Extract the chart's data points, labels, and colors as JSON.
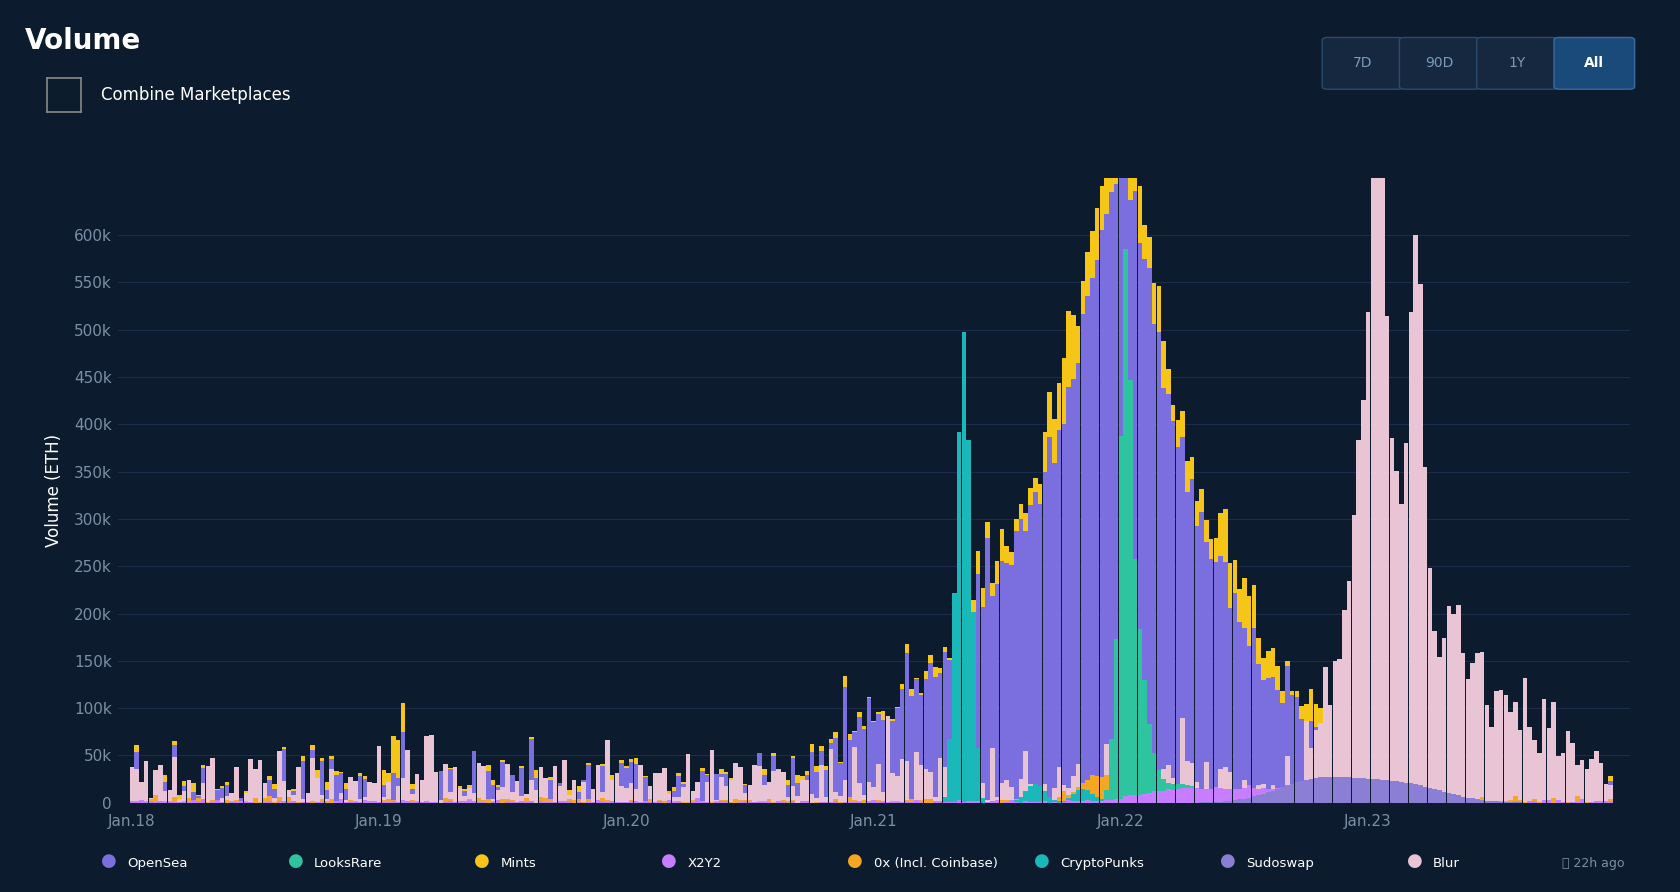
{
  "title": "Volume",
  "ylabel": "Volume (ETH)",
  "background_color": "#0d1b2e",
  "plot_bg_color": "#0d1b2e",
  "grid_color": "#1e3050",
  "text_color": "#ffffff",
  "tick_color": "#7a8fa6",
  "ylim": [
    0,
    660000
  ],
  "yticks": [
    0,
    50000,
    100000,
    150000,
    200000,
    250000,
    300000,
    350000,
    400000,
    450000,
    500000,
    550000,
    600000
  ],
  "ytick_labels": [
    "0",
    "50k",
    "100k",
    "150k",
    "200k",
    "250k",
    "300k",
    "350k",
    "400k",
    "450k",
    "500k",
    "550k",
    "600k"
  ],
  "xtick_labels": [
    "Jan.18",
    "Jan.19",
    "Jan.20",
    "Jan.21",
    "Jan.22",
    "Jan.23"
  ],
  "colors": {
    "opensea": "#7b6fe0",
    "looksrare": "#2ec4a0",
    "mints": "#f5c518",
    "x2y2": "#c77dff",
    "ox": "#f5a623",
    "cryptopunks": "#1ab8b8",
    "sudoswap": "#8a7fd4",
    "blur": "#e8c4d4"
  },
  "legend_items": [
    {
      "label": "OpenSea",
      "color": "#7b6fe0"
    },
    {
      "label": "LooksRare",
      "color": "#2ec4a0"
    },
    {
      "label": "Mints",
      "color": "#f5c518"
    },
    {
      "label": "X2Y2",
      "color": "#c77dff"
    },
    {
      "label": "0x (Incl. Coinbase)",
      "color": "#f5a623"
    },
    {
      "label": "CryptoPunks",
      "color": "#1ab8b8"
    },
    {
      "label": "Sudoswap",
      "color": "#8a7fd4"
    },
    {
      "label": "Blur",
      "color": "#e8c4d4"
    }
  ],
  "time_buttons": [
    "7D",
    "90D",
    "1Y",
    "All"
  ],
  "active_button": "All",
  "combine_label": "Combine Marketplaces",
  "n_weeks": 312,
  "jan_ticks": [
    0,
    52,
    104,
    156,
    208,
    260
  ]
}
